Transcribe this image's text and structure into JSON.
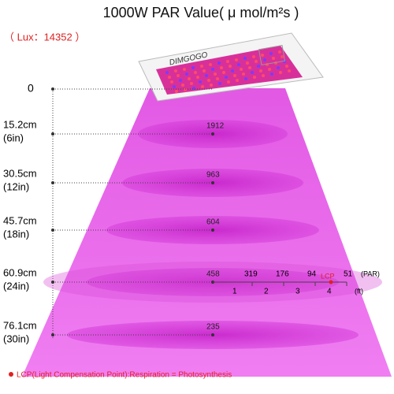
{
  "title": "1000W PAR Value( μ mol/m²s )",
  "lux": "（ Lux：14352 ）",
  "brand": "DIMGOGO",
  "levels": [
    {
      "distance": "0"
    },
    {
      "distance": "15.2cm",
      "inches": "(6in)",
      "par": 1912
    },
    {
      "distance": "30.5cm",
      "inches": "(12in)",
      "par": 963
    },
    {
      "distance": "45.7cm",
      "inches": "(18in)",
      "par": 604
    },
    {
      "distance": "60.9cm",
      "inches": "(24in)",
      "par": 458
    },
    {
      "distance": "76.1cm",
      "inches": "(30in)",
      "par": 235
    }
  ],
  "lcp_scale": {
    "par": [
      319,
      176,
      94,
      51
    ],
    "par_unit": "(PAR)",
    "feet": [
      1,
      2,
      3,
      4
    ],
    "feet_unit": "(ft)",
    "lcp": "LCP"
  },
  "footer": "LCP(Light Compensation Point):Respiration = Photosynthesis"
}
